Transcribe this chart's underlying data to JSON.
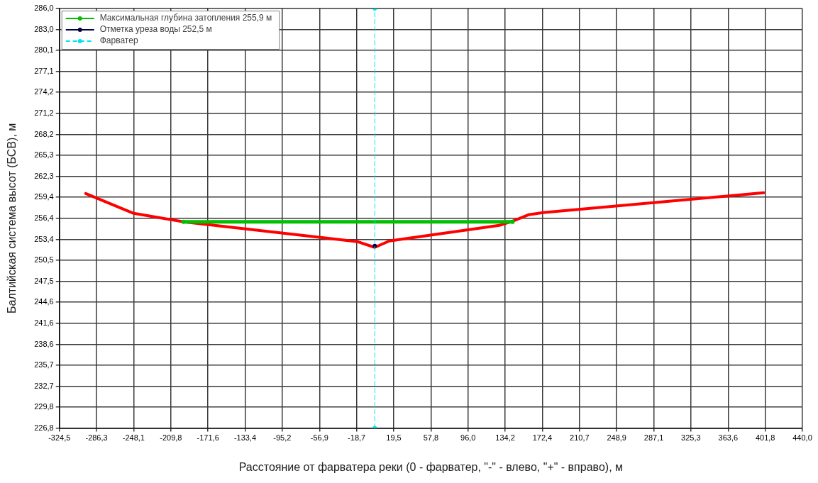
{
  "chart_data": {
    "type": "line",
    "xlabel": "Расстояние от фарватера реки (0 - фарватер, \"-\" - влево, \"+\" - вправо), м",
    "ylabel": "Балтийская система высот (БСВ), м",
    "xlim": [
      -324.5,
      440.0
    ],
    "xticks": [
      {
        "value": -324.5,
        "label": "-324,5"
      },
      {
        "value": -286.3,
        "label": "-286,3"
      },
      {
        "value": -248.1,
        "label": "-248,1"
      },
      {
        "value": -209.8,
        "label": "-209,8"
      },
      {
        "value": -171.6,
        "label": "-171,6"
      },
      {
        "value": -133.4,
        "label": "-133,4"
      },
      {
        "value": -95.2,
        "label": "-95,2"
      },
      {
        "value": -56.9,
        "label": "-56,9"
      },
      {
        "value": -18.7,
        "label": "-18,7"
      },
      {
        "value": 19.5,
        "label": "19,5"
      },
      {
        "value": 57.8,
        "label": "57,8"
      },
      {
        "value": 96.0,
        "label": "96,0"
      },
      {
        "value": 134.2,
        "label": "134,2"
      },
      {
        "value": 172.4,
        "label": "172,4"
      },
      {
        "value": 210.7,
        "label": "210,7"
      },
      {
        "value": 248.9,
        "label": "248,9"
      },
      {
        "value": 287.1,
        "label": "287,1"
      },
      {
        "value": 325.3,
        "label": "325,3"
      },
      {
        "value": 363.6,
        "label": "363,6"
      },
      {
        "value": 401.8,
        "label": "401,8"
      },
      {
        "value": 440.0,
        "label": "440,0"
      }
    ],
    "ylim": [
      226.8,
      286.0
    ],
    "yticks": [
      {
        "value": 226.8,
        "label": "226,8"
      },
      {
        "value": 229.8,
        "label": "229,8"
      },
      {
        "value": 232.7,
        "label": "232,7"
      },
      {
        "value": 235.7,
        "label": "235,7"
      },
      {
        "value": 238.6,
        "label": "238,6"
      },
      {
        "value": 241.6,
        "label": "241,6"
      },
      {
        "value": 244.6,
        "label": "244,6"
      },
      {
        "value": 247.5,
        "label": "247,5"
      },
      {
        "value": 250.5,
        "label": "250,5"
      },
      {
        "value": 253.4,
        "label": "253,4"
      },
      {
        "value": 256.4,
        "label": "256,4"
      },
      {
        "value": 259.4,
        "label": "259,4"
      },
      {
        "value": 262.3,
        "label": "262,3"
      },
      {
        "value": 265.3,
        "label": "265,3"
      },
      {
        "value": 268.2,
        "label": "268,2"
      },
      {
        "value": 271.2,
        "label": "271,2"
      },
      {
        "value": 274.2,
        "label": "274,2"
      },
      {
        "value": 277.1,
        "label": "277,1"
      },
      {
        "value": 280.1,
        "label": "280,1"
      },
      {
        "value": 283.0,
        "label": "283,0"
      },
      {
        "value": 286.0,
        "label": "286,0"
      }
    ],
    "grid": true,
    "legend": "top left",
    "series": [
      {
        "color": "#ff0000",
        "x": [
          -297.4,
          -248.1,
          -196.8,
          -17.5,
          0,
          15.0,
          128.0,
          141.8,
          158.1,
          173.1,
          400.2
        ],
        "values": [
          259.9,
          257.1,
          255.9,
          253.1,
          252.3,
          253.2,
          255.4,
          256.0,
          256.9,
          257.2,
          260.0
        ],
        "marker": "none"
      },
      {
        "name": "Максимальная глубина затопления 255,9 м",
        "color": "#00c000",
        "x": [
          -196.8,
          141.8
        ],
        "values": [
          255.9,
          255.9
        ],
        "marker": "circle"
      },
      {
        "name": "Отметка уреза воды 252,5 м",
        "color": "#000040",
        "x": [
          0
        ],
        "values": [
          252.5
        ],
        "marker": "circle"
      },
      {
        "name": "Фарватер",
        "color": "#00e5ee",
        "x": [
          0,
          0
        ],
        "values": [
          226.8,
          286.0
        ],
        "marker": "circle",
        "line_style": "dashed"
      }
    ]
  }
}
